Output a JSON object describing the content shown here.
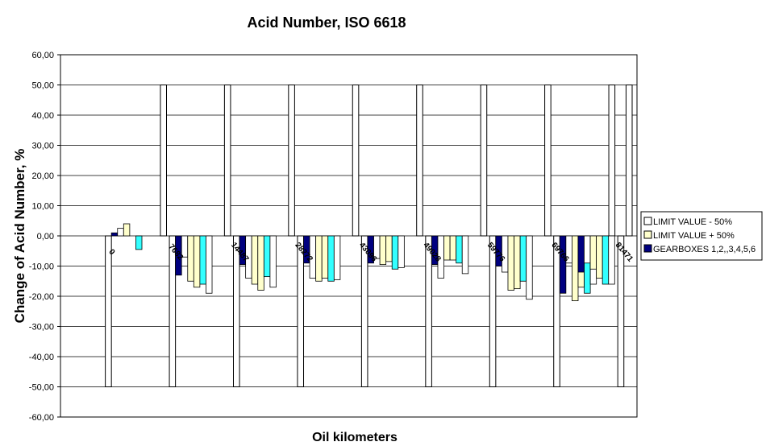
{
  "chart_data": {
    "type": "bar",
    "title": "Acid Number, ISO 6618",
    "xlabel": "Oil kilometers",
    "ylabel": "Change of Acid Number, %",
    "ylim": [
      -60,
      60
    ],
    "ytick_step": 10,
    "ytick_labels": [
      "60,00",
      "50,00",
      "40,00",
      "30,00",
      "20,00",
      "10,00",
      "0,00",
      "-10,00",
      "-20,00",
      "-30,00",
      "-40,00",
      "-50,00",
      "-60,00"
    ],
    "grid": true,
    "legend_position": "right",
    "categories": [
      "0",
      "7682",
      "14487",
      "28272",
      "43096",
      "49028",
      "59776",
      "69766",
      "81471"
    ],
    "limit_series": [
      {
        "name": "LIMIT VALUE - 50%",
        "value": -50,
        "color": "#ffffff"
      },
      {
        "name": "LIMIT VALUE + 50%",
        "value": 50,
        "color": "#ffffff"
      }
    ],
    "legend_entries": [
      {
        "name": "LIMIT VALUE - 50%",
        "color": "#ffffff"
      },
      {
        "name": "LIMIT VALUE + 50%",
        "color": "#ffffcc"
      },
      {
        "name": "GEARBOXES 1,2,,3,4,5,6",
        "color": "#000080"
      }
    ],
    "gearbox_colors": [
      "#000080",
      "#ffffff",
      "#ffffcc",
      "#ffffcc",
      "#33ffff",
      "#ffffff"
    ],
    "gearbox_groups": [
      [
        1.0,
        2.5,
        4.0,
        0.0,
        -4.5,
        0.0
      ],
      [
        -13.0,
        -7.0,
        -15.0,
        -17.0,
        -16.0,
        -19.0
      ],
      [
        -9.5,
        -14.0,
        -16.0,
        -18.0,
        -13.5,
        -17.0
      ],
      [
        -9.0,
        -14.0,
        -15.0,
        -14.0,
        -15.0,
        -14.5
      ],
      [
        -9.0,
        -7.5,
        -9.5,
        -8.5,
        -11.0,
        -10.5
      ],
      [
        -9.5,
        -14.0,
        -8.0,
        -8.0,
        -9.0,
        -12.5
      ],
      [
        -10.0,
        -12.0,
        -18.0,
        -17.5,
        -15.0,
        -21.0
      ],
      [
        -19.0,
        -9.0,
        -21.5,
        -17.0,
        -19.0,
        -16.0
      ],
      [
        -12.0,
        -9.0,
        -11.0,
        -14.0,
        -16.0,
        -16.0
      ]
    ]
  }
}
